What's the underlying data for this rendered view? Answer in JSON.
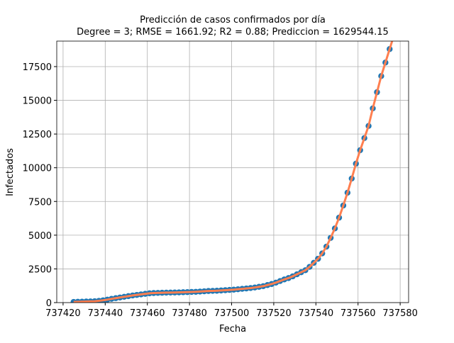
{
  "chart_data": {
    "type": "scatter",
    "title": "Predicción de casos confirmados por día",
    "subtitle": "Degree = 3; RMSE = 1661.92; R2 = 0.88; Prediccion = 1629544.15",
    "xlabel": "Fecha",
    "ylabel": "Infectados",
    "x": [
      737425,
      737427,
      737429,
      737431,
      737433,
      737435,
      737437,
      737439,
      737441,
      737443,
      737445,
      737447,
      737449,
      737451,
      737453,
      737455,
      737457,
      737459,
      737461,
      737463,
      737465,
      737467,
      737469,
      737471,
      737473,
      737475,
      737477,
      737479,
      737481,
      737483,
      737485,
      737487,
      737489,
      737491,
      737493,
      737495,
      737497,
      737499,
      737501,
      737503,
      737505,
      737507,
      737509,
      737511,
      737513,
      737515,
      737517,
      737519,
      737521,
      737523,
      737525,
      737527,
      737529,
      737531,
      737533,
      737535,
      737537,
      737539,
      737541,
      737543,
      737545,
      737547,
      737549,
      737551,
      737553,
      737555,
      737557,
      737559,
      737561,
      737563,
      737565,
      737567,
      737569,
      737571,
      737573,
      737575,
      737577
    ],
    "series": [
      {
        "color": "#1f77b4",
        "style": "points",
        "values": [
          50,
          60,
          70,
          80,
          90,
          100,
          130,
          170,
          220,
          280,
          330,
          380,
          430,
          480,
          530,
          570,
          610,
          650,
          690,
          710,
          720,
          730,
          740,
          745,
          750,
          760,
          770,
          780,
          790,
          800,
          820,
          840,
          860,
          870,
          880,
          900,
          920,
          940,
          960,
          990,
          1020,
          1050,
          1080,
          1120,
          1170,
          1220,
          1300,
          1380,
          1480,
          1600,
          1720,
          1820,
          1950,
          2100,
          2250,
          2400,
          2650,
          2950,
          3250,
          3650,
          4150,
          4800,
          5500,
          6300,
          7200,
          8150,
          9200,
          10300,
          11300,
          12200,
          13100,
          14400,
          15600,
          16800,
          17800,
          18800,
          19800
        ]
      },
      {
        "color": "#ff7f50",
        "style": "line",
        "values": [
          50,
          60,
          70,
          80,
          90,
          100,
          130,
          170,
          220,
          280,
          330,
          380,
          430,
          480,
          530,
          570,
          610,
          650,
          690,
          710,
          720,
          730,
          740,
          745,
          750,
          760,
          770,
          780,
          790,
          800,
          820,
          840,
          860,
          870,
          880,
          900,
          920,
          940,
          960,
          990,
          1020,
          1050,
          1080,
          1120,
          1170,
          1220,
          1300,
          1380,
          1480,
          1600,
          1720,
          1820,
          1950,
          2100,
          2250,
          2400,
          2650,
          2950,
          3250,
          3650,
          4150,
          4800,
          5500,
          6300,
          7200,
          8150,
          9200,
          10300,
          11300,
          12200,
          13100,
          14400,
          15600,
          16800,
          17800,
          18800,
          19800
        ]
      }
    ],
    "xlim": [
      737417,
      737584
    ],
    "xticks": [
      737420,
      737440,
      737460,
      737480,
      737500,
      737520,
      737540,
      737560,
      737580
    ],
    "ylim": [
      0,
      19390
    ],
    "yticks": [
      0,
      2500,
      5000,
      7500,
      10000,
      12500,
      15000,
      17500
    ],
    "grid": true
  }
}
